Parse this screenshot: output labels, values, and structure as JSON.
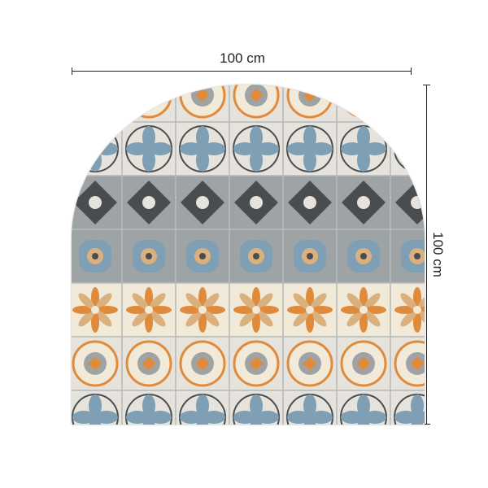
{
  "dimensions": {
    "width_label": "100 cm",
    "height_label": "100 cm"
  },
  "product": {
    "shape": "arch",
    "pattern": "patchwork-tiles",
    "palette": {
      "grey": "#9ea3a6",
      "light": "#e6e3dc",
      "cream": "#f2ead9",
      "orange": "#e08a3c",
      "tan": "#d9b07e",
      "dark": "#4a4d50",
      "blue": "#7fa0b4"
    }
  }
}
